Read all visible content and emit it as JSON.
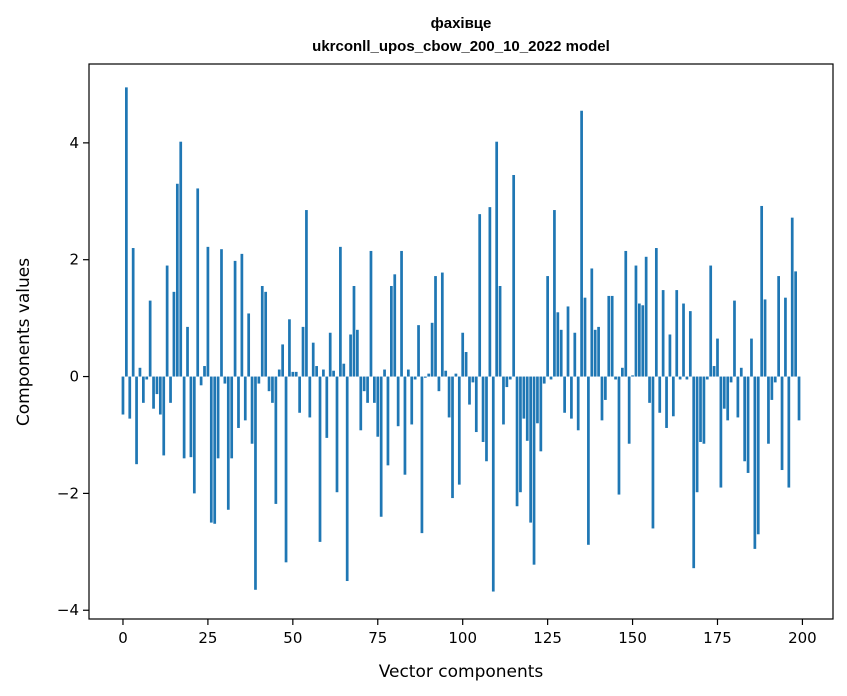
{
  "chart_data": {
    "type": "bar",
    "title": "фахівце",
    "subtitle": "ukrconll_upos_cbow_200_10_2022 model",
    "xlabel": "Vector components",
    "ylabel": "Components values",
    "xlim": [
      -10,
      209
    ],
    "ylim": [
      -4.15,
      5.35
    ],
    "xticks": [
      0,
      25,
      50,
      75,
      100,
      125,
      150,
      175,
      200
    ],
    "yticks": [
      -4,
      -2,
      0,
      2,
      4
    ],
    "xtick_labels": [
      "0",
      "25",
      "50",
      "75",
      "100",
      "125",
      "150",
      "175",
      "200"
    ],
    "ytick_labels": [
      "−4",
      "−2",
      "0",
      "2",
      "4"
    ],
    "bar_color": "#1f77b4",
    "grid": false,
    "legend": "none",
    "x": [
      0,
      1,
      2,
      3,
      4,
      5,
      6,
      7,
      8,
      9,
      10,
      11,
      12,
      13,
      14,
      15,
      16,
      17,
      18,
      19,
      20,
      21,
      22,
      23,
      24,
      25,
      26,
      27,
      28,
      29,
      30,
      31,
      32,
      33,
      34,
      35,
      36,
      37,
      38,
      39,
      40,
      41,
      42,
      43,
      44,
      45,
      46,
      47,
      48,
      49,
      50,
      51,
      52,
      53,
      54,
      55,
      56,
      57,
      58,
      59,
      60,
      61,
      62,
      63,
      64,
      65,
      66,
      67,
      68,
      69,
      70,
      71,
      72,
      73,
      74,
      75,
      76,
      77,
      78,
      79,
      80,
      81,
      82,
      83,
      84,
      85,
      86,
      87,
      88,
      89,
      90,
      91,
      92,
      93,
      94,
      95,
      96,
      97,
      98,
      99,
      100,
      101,
      102,
      103,
      104,
      105,
      106,
      107,
      108,
      109,
      110,
      111,
      112,
      113,
      114,
      115,
      116,
      117,
      118,
      119,
      120,
      121,
      122,
      123,
      124,
      125,
      126,
      127,
      128,
      129,
      130,
      131,
      132,
      133,
      134,
      135,
      136,
      137,
      138,
      139,
      140,
      141,
      142,
      143,
      144,
      145,
      146,
      147,
      148,
      149,
      150,
      151,
      152,
      153,
      154,
      155,
      156,
      157,
      158,
      159,
      160,
      161,
      162,
      163,
      164,
      165,
      166,
      167,
      168,
      169,
      170,
      171,
      172,
      173,
      174,
      175,
      176,
      177,
      178,
      179,
      180,
      181,
      182,
      183,
      184,
      185,
      186,
      187,
      188,
      189,
      190,
      191,
      192,
      193,
      194,
      195,
      196,
      197,
      198,
      199
    ],
    "values": [
      -0.65,
      4.95,
      -0.72,
      2.2,
      -1.5,
      0.15,
      -0.45,
      -0.05,
      1.3,
      -0.55,
      -0.3,
      -0.65,
      -1.35,
      1.9,
      -0.45,
      1.45,
      3.3,
      4.02,
      -1.4,
      0.85,
      -1.38,
      -2.0,
      3.22,
      -0.15,
      0.18,
      2.22,
      -2.5,
      -2.52,
      -1.4,
      2.18,
      -0.12,
      -2.28,
      -1.4,
      1.98,
      -0.88,
      2.1,
      -0.75,
      1.08,
      -1.15,
      -3.65,
      -0.12,
      1.55,
      1.45,
      -0.25,
      -0.45,
      -2.18,
      0.12,
      0.55,
      -3.18,
      0.98,
      0.08,
      0.08,
      -0.62,
      0.85,
      2.85,
      -0.7,
      0.58,
      0.18,
      -2.83,
      0.12,
      -1.05,
      0.75,
      0.1,
      -1.98,
      2.22,
      0.22,
      -3.5,
      0.72,
      1.55,
      0.8,
      -0.92,
      -0.25,
      -0.45,
      2.15,
      -0.45,
      -1.03,
      -2.4,
      0.12,
      -1.52,
      1.55,
      1.75,
      -0.85,
      2.15,
      -1.68,
      0.12,
      -0.82,
      -0.05,
      0.88,
      -2.68,
      -0.02,
      0.05,
      0.92,
      1.72,
      -0.25,
      1.78,
      0.1,
      -0.7,
      -2.08,
      0.05,
      -1.85,
      0.75,
      0.42,
      -0.48,
      -0.1,
      -0.95,
      2.78,
      -1.12,
      -1.45,
      2.9,
      -3.68,
      4.02,
      1.55,
      -0.82,
      -0.18,
      -0.05,
      3.45,
      -2.22,
      -1.98,
      -0.72,
      -1.1,
      -2.5,
      -3.22,
      -0.8,
      -1.28,
      -0.12,
      1.72,
      -0.05,
      2.85,
      1.1,
      0.8,
      -0.62,
      1.2,
      -0.72,
      0.75,
      -0.92,
      4.55,
      1.35,
      -2.88,
      1.85,
      0.8,
      0.85,
      -0.75,
      -0.4,
      1.38,
      1.38,
      -0.05,
      -2.02,
      0.15,
      2.15,
      -1.15,
      0.02,
      1.9,
      1.25,
      1.22,
      2.05,
      -0.45,
      -2.6,
      2.2,
      -0.62,
      1.48,
      -0.88,
      0.72,
      -0.68,
      1.48,
      -0.05,
      1.25,
      -0.05,
      1.12,
      -3.28,
      -1.98,
      -1.12,
      -1.15,
      -0.05,
      1.9,
      0.18,
      0.65,
      -1.9,
      -0.55,
      -0.75,
      -0.1,
      1.3,
      -0.7,
      0.15,
      -1.45,
      -1.65,
      0.65,
      -2.95,
      -2.7,
      2.92,
      1.32,
      -1.15,
      -0.4,
      -0.1,
      1.72,
      -1.6,
      1.35,
      -1.9,
      2.72,
      1.8,
      -0.75
    ]
  }
}
